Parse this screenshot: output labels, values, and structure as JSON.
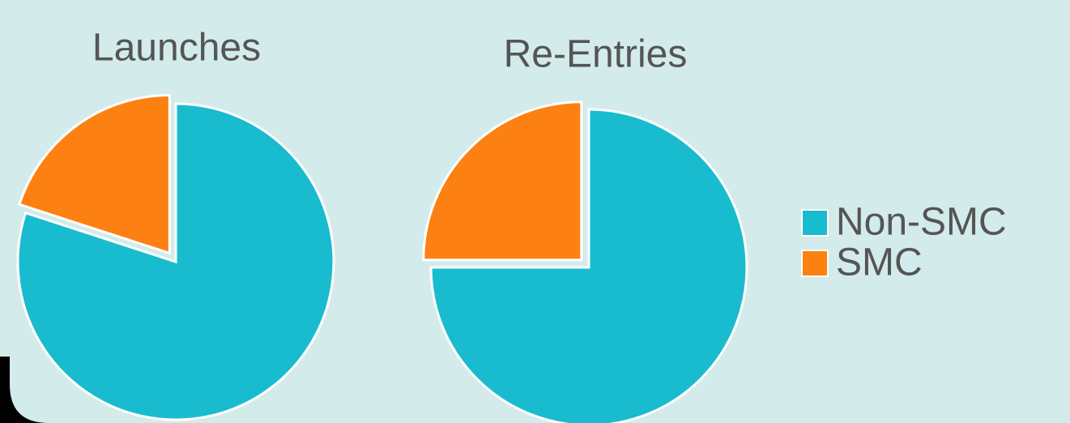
{
  "chart_data": [
    {
      "type": "pie",
      "title": "Launches",
      "values": [
        80,
        20
      ],
      "colors": [
        "#19bccf",
        "#fd8112"
      ]
    },
    {
      "type": "pie",
      "title": "Re-Entries",
      "values": [
        75,
        25
      ],
      "colors": [
        "#19bccf",
        "#fd8112"
      ]
    }
  ],
  "legend": {
    "labels": [
      "Non-SMC",
      "SMC"
    ],
    "colors": [
      "#19bccf",
      "#fd8112"
    ]
  }
}
